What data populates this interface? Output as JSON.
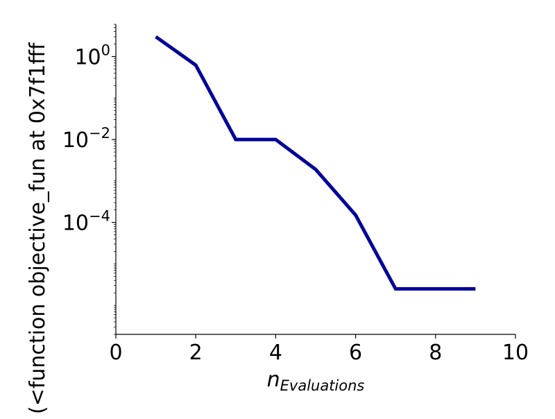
{
  "chart_data": {
    "type": "line",
    "title": "",
    "xlabel": {
      "base": "n",
      "subscript": "Evaluations"
    },
    "ylabel": "(<function objective_fun at 0x7f1fff",
    "x_scale": "linear",
    "y_scale": "log",
    "xlim": [
      0,
      10
    ],
    "ylim": [
      2e-07,
      6
    ],
    "grid": false,
    "legend": "none",
    "x_ticks": [
      0,
      2,
      4,
      6,
      8,
      10
    ],
    "y_ticks": [
      {
        "value": 1,
        "base": "10",
        "exp": "0"
      },
      {
        "value": 0.01,
        "base": "10",
        "exp": "−2"
      },
      {
        "value": 0.0001,
        "base": "10",
        "exp": "−4"
      }
    ],
    "series": [
      {
        "color": "#000099",
        "x": [
          1,
          2,
          3,
          4,
          5,
          6,
          7,
          8,
          9
        ],
        "y": [
          3.0,
          0.62,
          0.01,
          0.01,
          0.0019,
          0.00015,
          2.5e-06,
          2.5e-06,
          2.5e-06
        ]
      }
    ]
  }
}
